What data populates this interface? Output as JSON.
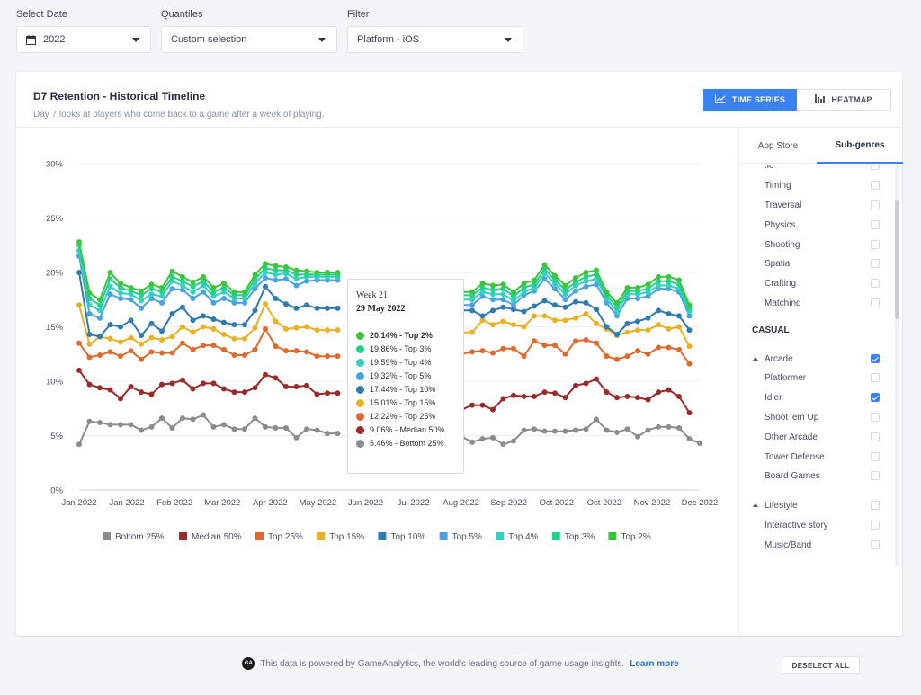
{
  "filters": [
    {
      "label": "Select Date",
      "value": "2022",
      "icon": "calendar-icon"
    },
    {
      "label": "Quantiles",
      "value": "Custom selection"
    },
    {
      "label": "Filter",
      "value": "Platform - iOS"
    }
  ],
  "card": {
    "title": "D7 Retention - Historical Timeline",
    "subtitle": "Day 7 looks at players who come back to a game after a week of playing.",
    "time_series_label": "TIME SERIES",
    "heatmap_label": "HEATMAP"
  },
  "chart_data": {
    "type": "line",
    "title": "",
    "xlabel": "",
    "ylabel": "",
    "ylim": [
      0,
      30
    ],
    "yticks": [
      "0%",
      "5%",
      "10%",
      "15%",
      "20%",
      "25%",
      "30%"
    ],
    "xticks": [
      "Jan 2022",
      "Jan 2022",
      "Feb 2022",
      "Mar 2022",
      "Apr 2022",
      "May 2022",
      "Jun 2022",
      "Jul 2022",
      "Aug 2022",
      "Sep 2022",
      "Oct 2022",
      "Oct 2022",
      "Nov 2022",
      "Dec 2022"
    ],
    "x_range": [
      "2022-01-01",
      "2022-12-31"
    ],
    "legend_position": "bottom",
    "grid": true,
    "series": [
      {
        "name": "Bottom 25%",
        "color": "#8c8c8c",
        "values": [
          4.2,
          6.3,
          6.2,
          6.0,
          6.0,
          6.0,
          5.5,
          5.8,
          6.6,
          5.7,
          6.6,
          6.5,
          6.9,
          5.8,
          6.0,
          5.6,
          5.6,
          6.6,
          5.8,
          5.7,
          5.7,
          4.8,
          5.6,
          5.5,
          5.2,
          5.2,
          null,
          null,
          null,
          null,
          null,
          null,
          null,
          null,
          null,
          null,
          null,
          4.9,
          4.4,
          4.7,
          4.8,
          4.2,
          4.5,
          5.5,
          5.6,
          5.4,
          5.4,
          5.4,
          5.5,
          5.6,
          6.5,
          5.5,
          5.3,
          5.6,
          4.9,
          5.5,
          5.8,
          5.8,
          5.7,
          4.7,
          4.3
        ]
      },
      {
        "name": "Median 50%",
        "color": "#9b2a2a",
        "values": [
          11.0,
          9.7,
          9.4,
          9.2,
          8.4,
          9.5,
          9.0,
          8.8,
          9.7,
          9.8,
          10.1,
          9.3,
          9.8,
          9.8,
          9.3,
          9.0,
          9.0,
          9.4,
          10.6,
          10.3,
          9.5,
          9.5,
          9.6,
          8.8,
          8.9,
          8.9,
          null,
          null,
          null,
          null,
          null,
          null,
          null,
          null,
          null,
          null,
          null,
          7.4,
          7.8,
          7.8,
          7.4,
          8.4,
          8.7,
          8.6,
          8.6,
          9.0,
          8.9,
          8.5,
          9.6,
          9.8,
          10.2,
          9.0,
          8.5,
          8.6,
          8.5,
          8.3,
          9.0,
          9.2,
          8.6,
          7.1,
          null
        ]
      },
      {
        "name": "Top 25%",
        "color": "#e06a2e",
        "values": [
          13.5,
          12.2,
          12.4,
          12.7,
          12.3,
          12.8,
          12.0,
          12.7,
          12.6,
          12.6,
          13.5,
          12.9,
          13.3,
          13.3,
          12.9,
          12.4,
          12.4,
          12.9,
          14.8,
          13.2,
          12.8,
          12.8,
          12.7,
          12.3,
          12.3,
          12.3,
          null,
          null,
          null,
          null,
          null,
          null,
          null,
          null,
          null,
          null,
          null,
          12.5,
          12.7,
          12.8,
          12.6,
          13.0,
          13.0,
          12.3,
          13.7,
          13.3,
          13.3,
          12.5,
          13.7,
          13.8,
          13.5,
          12.3,
          12.0,
          12.3,
          12.8,
          12.5,
          13.1,
          13.1,
          12.9,
          11.6,
          null
        ]
      },
      {
        "name": "Top 15%",
        "color": "#e8b226",
        "values": [
          17.0,
          13.4,
          14.1,
          13.9,
          13.6,
          14.0,
          13.4,
          14.0,
          13.8,
          14.1,
          15.0,
          14.5,
          15.0,
          14.8,
          14.3,
          13.9,
          13.9,
          14.9,
          17.1,
          15.5,
          14.8,
          14.9,
          15.0,
          14.7,
          14.7,
          14.7,
          null,
          null,
          null,
          null,
          null,
          null,
          null,
          null,
          null,
          null,
          null,
          14.5,
          14.5,
          15.6,
          15.2,
          15.5,
          15.2,
          15.0,
          16.0,
          16.0,
          15.6,
          15.6,
          15.8,
          16.2,
          15.3,
          14.8,
          14.2,
          14.5,
          14.7,
          14.7,
          15.2,
          14.8,
          15.0,
          13.2,
          null
        ]
      },
      {
        "name": "Top 10%",
        "color": "#2e7bb0",
        "values": [
          20.0,
          14.3,
          14.1,
          15.2,
          15.0,
          15.6,
          14.2,
          15.3,
          14.6,
          16.2,
          16.8,
          15.6,
          16.0,
          15.7,
          15.4,
          15.2,
          15.2,
          16.5,
          18.7,
          17.6,
          17.1,
          16.7,
          17.0,
          16.7,
          16.7,
          16.7,
          null,
          null,
          null,
          null,
          null,
          null,
          null,
          null,
          null,
          null,
          null,
          16.5,
          16.5,
          16.0,
          16.5,
          16.8,
          16.6,
          16.4,
          16.9,
          17.4,
          17.0,
          16.8,
          17.3,
          17.2,
          16.6,
          15.0,
          14.3,
          15.3,
          15.5,
          15.8,
          16.5,
          16.2,
          16.0,
          14.7,
          null
        ]
      },
      {
        "name": "Top 5%",
        "color": "#4aa3e0",
        "values": [
          21.5,
          16.2,
          15.8,
          18.0,
          17.6,
          17.5,
          16.7,
          17.6,
          17.2,
          18.5,
          18.4,
          17.6,
          18.2,
          17.2,
          17.6,
          17.2,
          17.2,
          18.5,
          19.5,
          19.3,
          19.4,
          18.8,
          19.2,
          19.3,
          19.3,
          19.3,
          null,
          null,
          null,
          null,
          null,
          null,
          null,
          null,
          null,
          null,
          null,
          17.0,
          17.0,
          17.8,
          17.5,
          17.5,
          17.0,
          17.9,
          18.3,
          19.4,
          18.5,
          17.5,
          18.3,
          18.7,
          18.9,
          17.2,
          16.0,
          17.6,
          17.6,
          17.8,
          18.5,
          18.5,
          18.2,
          16.0,
          null
        ]
      },
      {
        "name": "Top 4%",
        "color": "#36cfc3",
        "values": [
          22.0,
          17.0,
          16.5,
          18.7,
          18.1,
          18.0,
          17.4,
          18.0,
          17.8,
          19.2,
          18.8,
          18.2,
          18.8,
          17.8,
          18.2,
          17.6,
          17.6,
          19.0,
          20.0,
          19.8,
          19.9,
          19.4,
          19.6,
          19.6,
          19.6,
          19.6,
          null,
          null,
          null,
          null,
          null,
          null,
          null,
          null,
          null,
          null,
          null,
          17.5,
          17.5,
          18.2,
          18.0,
          18.0,
          17.4,
          18.2,
          18.6,
          19.9,
          19.0,
          18.0,
          18.8,
          19.2,
          19.4,
          17.6,
          16.4,
          18.0,
          18.0,
          18.2,
          18.8,
          18.8,
          18.5,
          16.4,
          null
        ]
      },
      {
        "name": "Top 3%",
        "color": "#22d18b",
        "values": [
          22.5,
          17.6,
          17.0,
          19.4,
          18.6,
          18.3,
          17.9,
          18.5,
          18.2,
          19.6,
          19.2,
          18.7,
          19.2,
          18.2,
          18.6,
          17.9,
          17.9,
          19.4,
          20.4,
          20.2,
          20.2,
          19.8,
          19.8,
          19.8,
          19.8,
          19.8,
          null,
          null,
          null,
          null,
          null,
          null,
          null,
          null,
          null,
          null,
          null,
          17.9,
          17.9,
          18.6,
          18.4,
          18.5,
          17.8,
          18.6,
          18.9,
          20.3,
          19.3,
          18.4,
          19.1,
          19.6,
          19.8,
          17.9,
          16.8,
          18.3,
          18.3,
          18.5,
          19.2,
          19.2,
          18.9,
          16.7,
          null
        ]
      },
      {
        "name": "Top 2%",
        "color": "#3cc63c",
        "values": [
          22.8,
          18.1,
          17.5,
          20.0,
          19.0,
          18.6,
          18.3,
          18.9,
          18.6,
          20.1,
          19.6,
          19.1,
          19.6,
          18.6,
          19.0,
          18.2,
          18.2,
          19.8,
          20.8,
          20.6,
          20.5,
          20.2,
          20.1,
          20.0,
          20.0,
          20.0,
          null,
          null,
          null,
          null,
          null,
          null,
          null,
          null,
          null,
          null,
          null,
          18.2,
          18.2,
          19.0,
          18.8,
          18.9,
          18.2,
          19.0,
          19.3,
          20.7,
          19.7,
          18.8,
          19.5,
          20.0,
          20.2,
          18.2,
          17.2,
          18.6,
          18.6,
          18.9,
          19.6,
          19.6,
          19.3,
          17.0,
          null
        ]
      }
    ]
  },
  "tooltip": {
    "week": "Week 21",
    "date": "29 May 2022",
    "rows": [
      {
        "text": "20.14% - Top 2%",
        "color": "#3cc63c",
        "bold": true
      },
      {
        "text": "19.86% - Top 3%",
        "color": "#22d18b",
        "bold": false
      },
      {
        "text": "19.59% - Top 4%",
        "color": "#36cfc3",
        "bold": false
      },
      {
        "text": "19.32% - Top 5%",
        "color": "#4aa3e0",
        "bold": false
      },
      {
        "text": "17.44% - Top 10%",
        "color": "#2e7bb0",
        "bold": false
      },
      {
        "text": "15.01% - Top 15%",
        "color": "#e8b226",
        "bold": false
      },
      {
        "text": "12.22% - Top 25%",
        "color": "#e06a2e",
        "bold": false
      },
      {
        "text": "9.06% - Median 50%",
        "color": "#9b2a2a",
        "bold": false
      },
      {
        "text": "5.46% - Bottom 25%",
        "color": "#8c8c8c",
        "bold": false
      }
    ]
  },
  "side": {
    "tab_app_store": "App Store",
    "tab_subgenres": "Sub-genres",
    "items": [
      {
        "label": ".io",
        "type": "item",
        "checked": false
      },
      {
        "label": "Timing",
        "type": "item",
        "checked": false
      },
      {
        "label": "Traversal",
        "type": "item",
        "checked": false
      },
      {
        "label": "Physics",
        "type": "item",
        "checked": false
      },
      {
        "label": "Shooting",
        "type": "item",
        "checked": false
      },
      {
        "label": "Spatial",
        "type": "item",
        "checked": false
      },
      {
        "label": "Crafting",
        "type": "item",
        "checked": false
      },
      {
        "label": "Matching",
        "type": "item",
        "checked": false
      },
      {
        "label": "CASUAL",
        "type": "head"
      },
      {
        "label": "Arcade",
        "type": "group",
        "checked": true
      },
      {
        "label": "Platformer",
        "type": "item",
        "checked": false
      },
      {
        "label": "Idler",
        "type": "item",
        "checked": true
      },
      {
        "label": "Shoot 'em Up",
        "type": "item",
        "checked": false
      },
      {
        "label": "Other Arcade",
        "type": "item",
        "checked": false
      },
      {
        "label": "Tower Defense",
        "type": "item",
        "checked": false
      },
      {
        "label": "Board Games",
        "type": "item",
        "checked": false
      },
      {
        "label": "Lifestyle",
        "type": "group",
        "checked": false
      },
      {
        "label": "Interactive story",
        "type": "item",
        "checked": false
      },
      {
        "label": "Music/Band",
        "type": "item",
        "checked": false
      }
    ],
    "deselect_label": "DESELECT ALL"
  },
  "footer": {
    "logo_text": "GA",
    "text": "This data is powered by GameAnalytics, the world's leading source of game usage insights.",
    "link": "Learn more"
  }
}
